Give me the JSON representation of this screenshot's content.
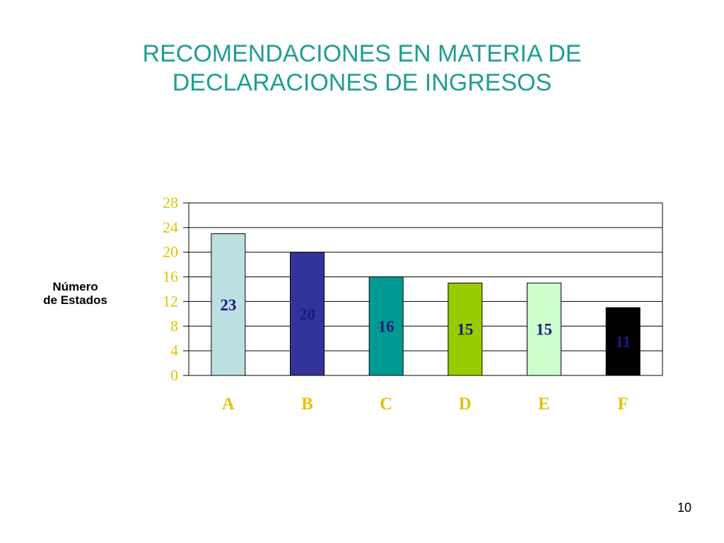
{
  "title": {
    "line1": "RECOMENDACIONES EN MATERIA DE",
    "line2": "DECLARACIONES DE INGRESOS"
  },
  "page_number": "10",
  "chart_data": {
    "type": "bar",
    "categories": [
      "A",
      "B",
      "C",
      "D",
      "E",
      "F"
    ],
    "values": [
      23,
      20,
      16,
      15,
      15,
      11
    ],
    "data_labels": [
      "23",
      "20",
      "16",
      "15",
      "15",
      "11"
    ],
    "ylabel": [
      "Número",
      "de Estados"
    ],
    "xlabel": "",
    "ylim": [
      0,
      28
    ],
    "yticks": [
      0,
      4,
      8,
      12,
      16,
      20,
      24,
      28
    ],
    "grid": true,
    "legend": "none",
    "colors": {
      "bars": [
        "#bde0e2",
        "#333399",
        "#009a93",
        "#99cc00",
        "#ccffcc",
        "#000000"
      ],
      "data_label": "#1a1a80",
      "tick_labels": "#e6c200",
      "title": "#1f9d95",
      "gridline": "#000000"
    }
  }
}
